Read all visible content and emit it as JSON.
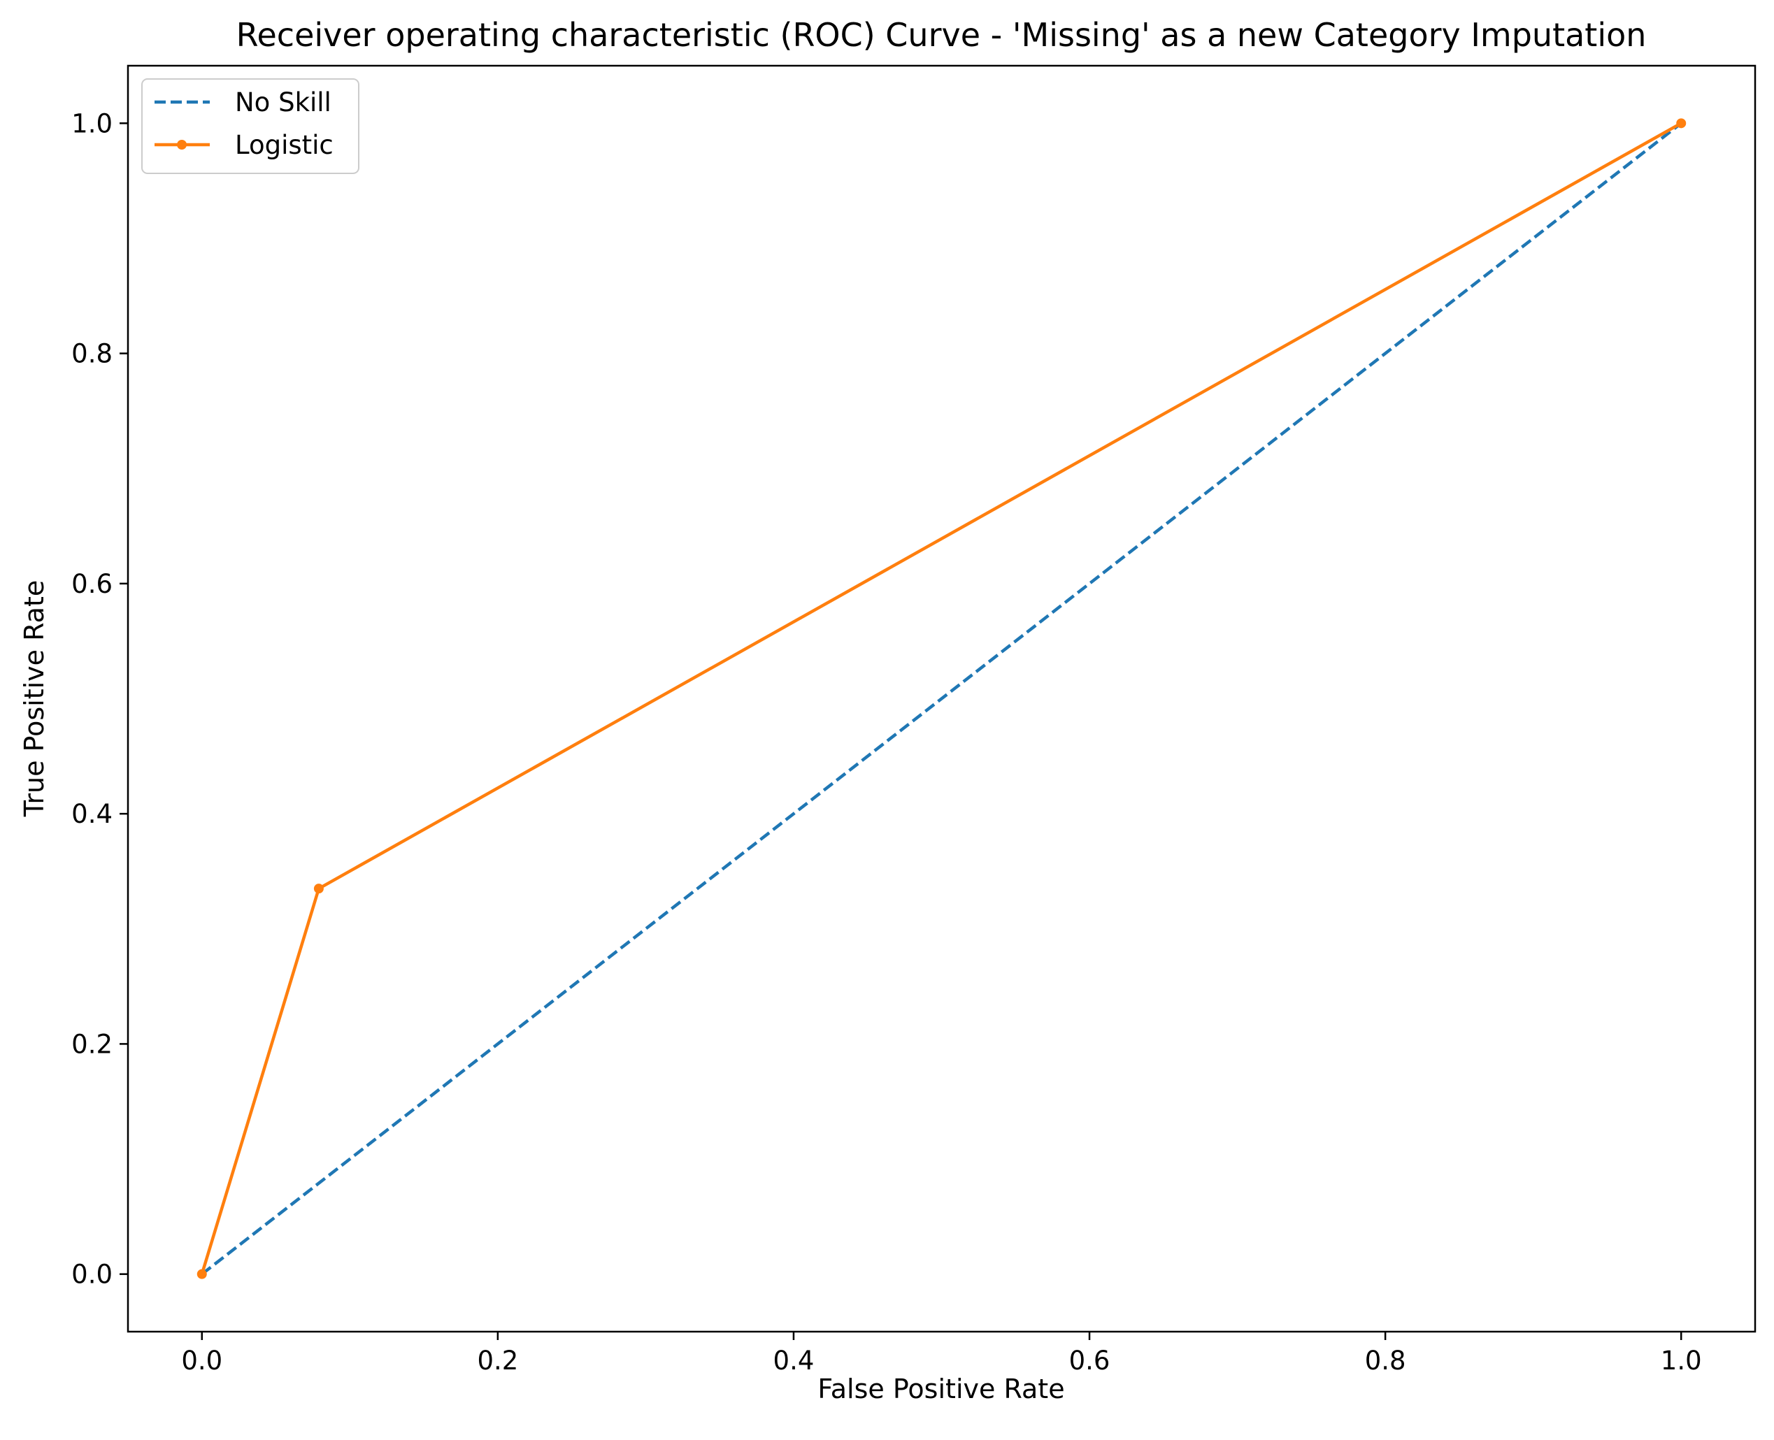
{
  "chart_data": {
    "type": "line",
    "title": "Receiver operating characteristic (ROC) Curve - 'Missing' as a new Category Imputation",
    "xlabel": "False Positive Rate",
    "ylabel": "True Positive Rate",
    "xlim": [
      -0.05,
      1.05
    ],
    "ylim": [
      -0.05,
      1.05
    ],
    "xticks": [
      0.0,
      0.2,
      0.4,
      0.6,
      0.8,
      1.0
    ],
    "yticks": [
      0.0,
      0.2,
      0.4,
      0.6,
      0.8,
      1.0
    ],
    "xtick_labels": [
      "0.0",
      "0.2",
      "0.4",
      "0.6",
      "0.8",
      "1.0"
    ],
    "ytick_labels": [
      "0.0",
      "0.2",
      "0.4",
      "0.6",
      "0.8",
      "1.0"
    ],
    "grid": false,
    "legend_position": "top-left",
    "series": [
      {
        "name": "No Skill",
        "x": [
          0.0,
          1.0
        ],
        "y": [
          0.0,
          1.0
        ],
        "color": "#1f77b4",
        "style": "dashed",
        "marker": "none"
      },
      {
        "name": "Logistic",
        "x": [
          0.0,
          0.079,
          1.0
        ],
        "y": [
          0.0,
          0.335,
          1.0
        ],
        "color": "#ff7f0e",
        "style": "solid",
        "marker": "dot"
      }
    ]
  }
}
